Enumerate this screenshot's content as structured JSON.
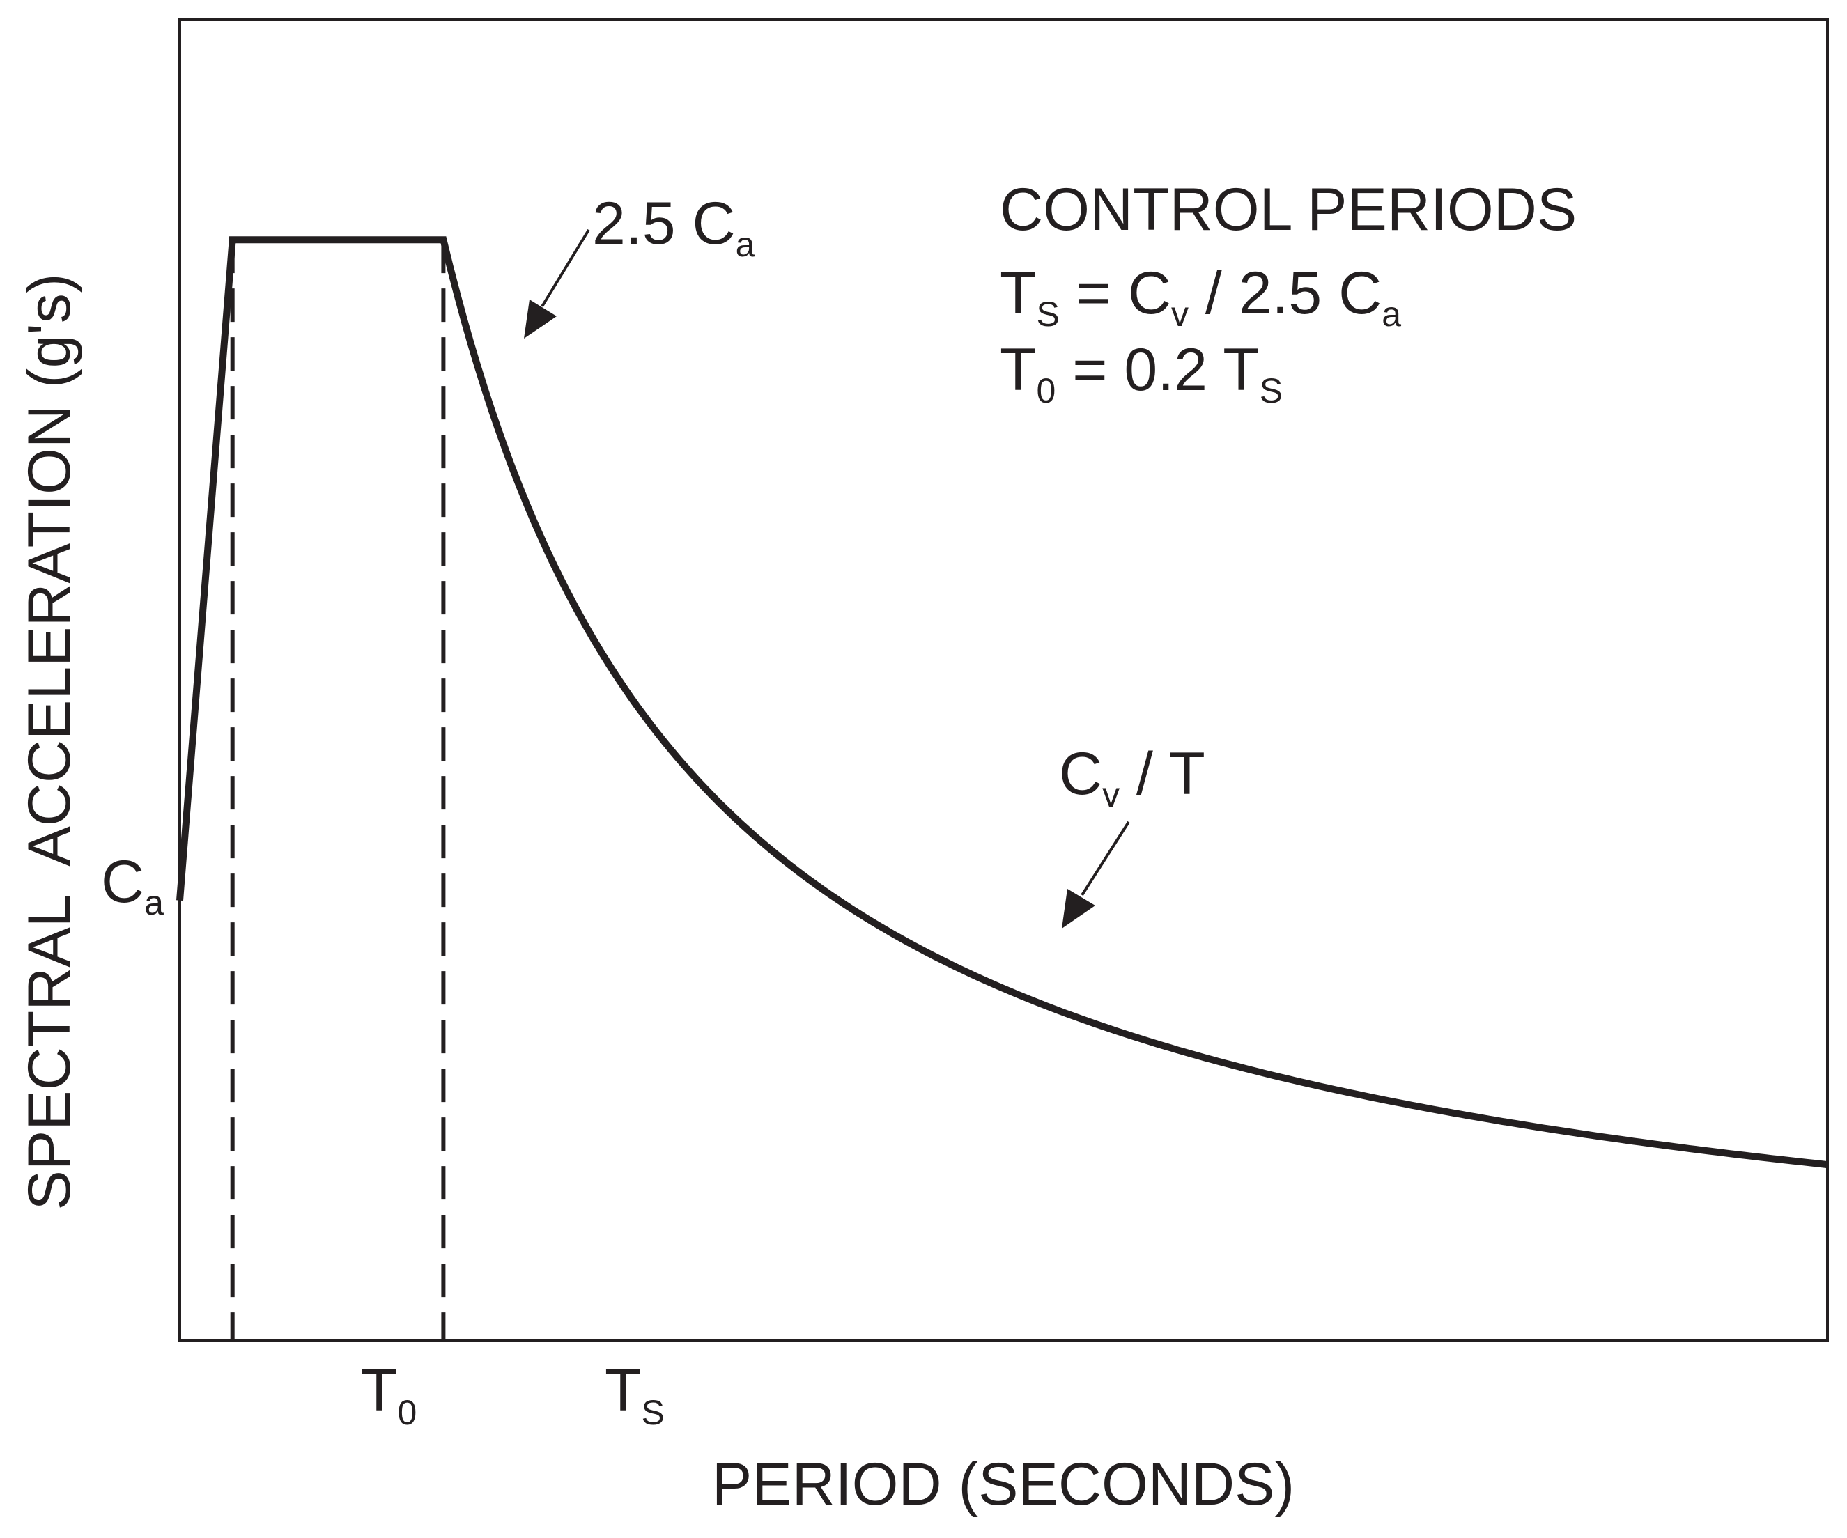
{
  "chart_data": {
    "type": "line",
    "title": "",
    "xlabel": "PERIOD (SECONDS)",
    "ylabel": "SPECTRAL  ACCELERATION (g's)",
    "x_tick_labels": [
      {
        "main": "T",
        "sub": "0"
      },
      {
        "main": "T",
        "sub": "S"
      }
    ],
    "y_tick_labels": [
      {
        "main": "C",
        "sub": "a"
      }
    ],
    "annotations": {
      "plateau": {
        "main": "2.5 C",
        "sub": "a"
      },
      "decay": {
        "main": "C",
        "sub": "v",
        "rest": " / T"
      }
    },
    "control_periods": {
      "heading": "CONTROL PERIODS",
      "line1": {
        "t": "T",
        "t_sub": "S",
        "eq": " = C",
        "c_sub": "v",
        "mid": " / 2.5 C",
        "end_sub": "a"
      },
      "line2": {
        "t": "T",
        "t_sub": "0",
        "eq": " = 0.2 T",
        "end_sub": "S"
      }
    },
    "normalization": {
      "Ca": 1,
      "Cv": 1,
      "Ts": 0.4,
      "T0": 0.08
    },
    "segments": [
      {
        "label": "ramp",
        "from": [
          0,
          1
        ],
        "to": [
          0.08,
          2.5
        ]
      },
      {
        "label": "plateau",
        "from": [
          0.08,
          2.5
        ],
        "to": [
          0.4,
          2.5
        ]
      },
      {
        "label": "decay",
        "formula": "Cv / T",
        "T_range": [
          0.4,
          2.5
        ]
      }
    ],
    "xlim": [
      0,
      2.5
    ],
    "ylim": [
      0,
      3
    ],
    "grid": false,
    "legend": "none",
    "line_color": "#231f20"
  }
}
